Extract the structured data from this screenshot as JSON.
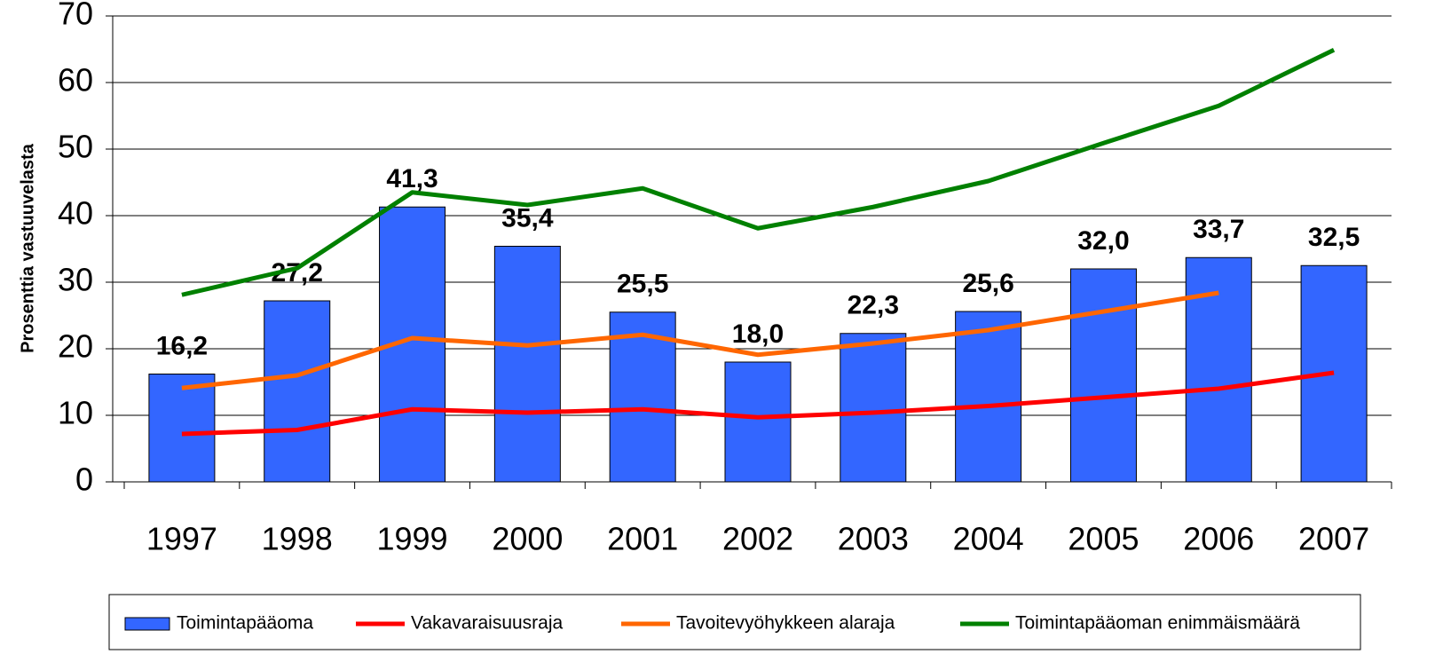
{
  "chart_data": {
    "type": "bar",
    "y_label": "Prosenttia vastuuvelasta",
    "categories": [
      "1997",
      "1998",
      "1999",
      "2000",
      "2001",
      "2002",
      "2003",
      "2004",
      "2005",
      "2006",
      "2007"
    ],
    "series": [
      {
        "name": "Toimintapääoma",
        "type": "bar",
        "color": "#3366ff",
        "values": [
          16.2,
          27.2,
          41.3,
          35.4,
          25.5,
          18.0,
          22.3,
          25.6,
          32.0,
          33.7,
          32.5
        ],
        "value_labels": [
          "16,2",
          "27,2",
          "41,3",
          "35,4",
          "25,5",
          "18,0",
          "22,3",
          "25,6",
          "32,0",
          "33,7",
          "32,5"
        ]
      },
      {
        "name": "Vakavaraisuusraja",
        "type": "line",
        "color": "#ff0000",
        "values": [
          7.2,
          7.8,
          10.9,
          10.4,
          10.9,
          9.7,
          10.4,
          11.4,
          12.7,
          14.0,
          16.4
        ]
      },
      {
        "name": "Tavoitevyöhykkeen alaraja",
        "type": "line",
        "color": "#ff6600",
        "values": [
          14.1,
          16.0,
          21.6,
          20.5,
          22.1,
          19.1,
          20.8,
          22.8,
          25.6,
          28.4,
          null
        ]
      },
      {
        "name": "Toimintapääoman enimmäismäärä",
        "type": "line",
        "color": "#008000",
        "values": [
          28.1,
          32.1,
          43.5,
          41.6,
          44.1,
          38.1,
          41.3,
          45.2,
          50.9,
          56.5,
          64.9
        ]
      }
    ],
    "ylim": [
      0,
      70
    ],
    "yticks": [
      0,
      10,
      20,
      30,
      40,
      50,
      60,
      70
    ],
    "grid": true,
    "legend": "bottom"
  }
}
